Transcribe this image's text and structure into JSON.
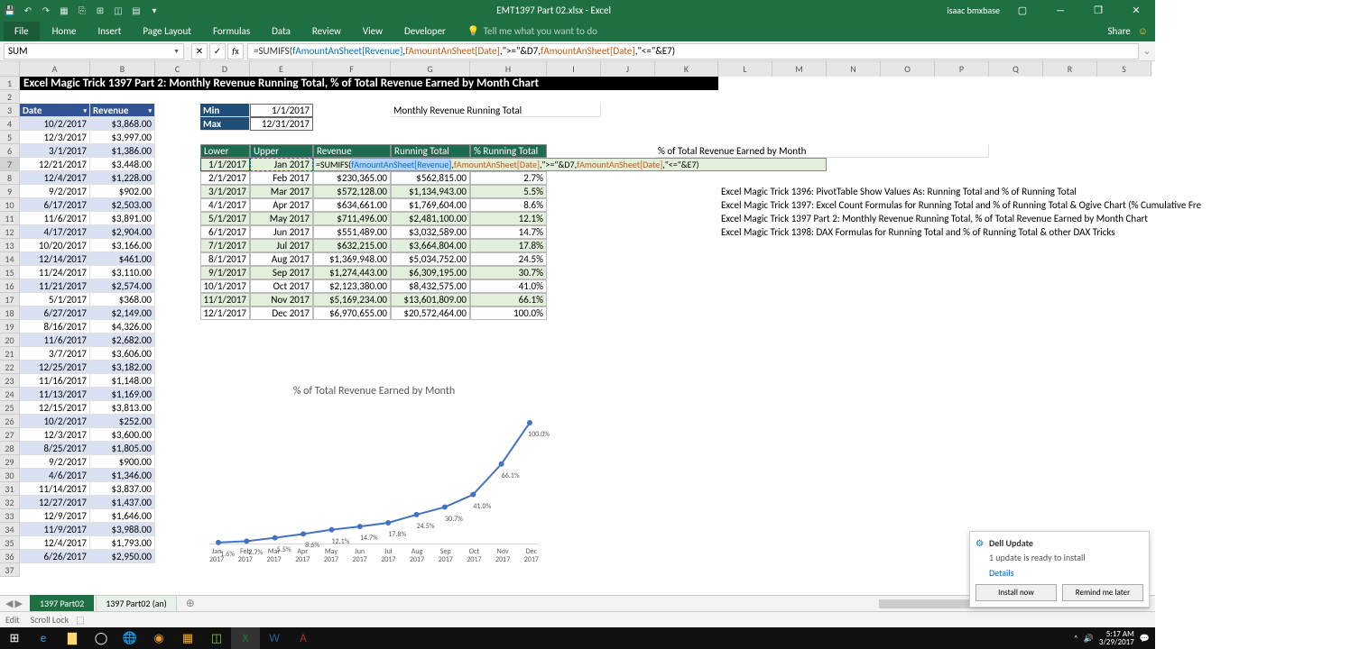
{
  "app": {
    "title": "EMT1397 Part 02.xlsx - Excel",
    "user": "isaac bmxbase"
  },
  "ribbon": {
    "file": "File",
    "tabs": [
      "Home",
      "Insert",
      "Page Layout",
      "Formulas",
      "Data",
      "Review",
      "View",
      "Developer"
    ],
    "tellme": "Tell me what you want to do",
    "share": "Share"
  },
  "namebox": "SUM",
  "formula": {
    "prefix": "=SUMIFS(",
    "arg1": "fAmountAnSheet[Revenue]",
    "sep1": ",",
    "arg2": "fAmountAnSheet[Date]",
    "sep2": ",\">=\"&D7,",
    "arg3": "fAmountAnSheet[Date]",
    "sep3": ",\"<=\"&E7)"
  },
  "columns": {
    "widths": [
      22,
      78,
      72,
      50,
      55,
      70,
      86,
      88,
      85,
      60,
      60,
      70,
      60,
      60,
      60,
      60,
      60,
      60,
      60,
      60
    ],
    "labels": [
      "",
      "A",
      "B",
      "C",
      "D",
      "E",
      "F",
      "G",
      "H",
      "I",
      "J",
      "K",
      "L",
      "M",
      "N",
      "O",
      "P",
      "Q",
      "R",
      "S"
    ]
  },
  "title_row": "Excel Magic Trick 1397 Part 2: Monthly Revenue Running Total, % of Total Revenue Earned by Month Chart",
  "table1": {
    "headers": [
      "Date",
      "Revenue"
    ],
    "rows": [
      [
        "10/2/2017",
        "$3,868.00"
      ],
      [
        "12/3/2017",
        "$3,997.00"
      ],
      [
        "3/1/2017",
        "$1,386.00"
      ],
      [
        "12/21/2017",
        "$3,448.00"
      ],
      [
        "12/4/2017",
        "$1,228.00"
      ],
      [
        "9/2/2017",
        "$902.00"
      ],
      [
        "6/17/2017",
        "$2,503.00"
      ],
      [
        "11/6/2017",
        "$3,891.00"
      ],
      [
        "4/17/2017",
        "$2,904.00"
      ],
      [
        "10/20/2017",
        "$3,166.00"
      ],
      [
        "12/14/2017",
        "$461.00"
      ],
      [
        "11/24/2017",
        "$3,110.00"
      ],
      [
        "11/21/2017",
        "$2,574.00"
      ],
      [
        "5/1/2017",
        "$368.00"
      ],
      [
        "6/27/2017",
        "$2,149.00"
      ],
      [
        "8/16/2017",
        "$4,326.00"
      ],
      [
        "11/6/2017",
        "$2,682.00"
      ],
      [
        "3/7/2017",
        "$3,606.00"
      ],
      [
        "12/25/2017",
        "$3,182.00"
      ],
      [
        "11/16/2017",
        "$1,148.00"
      ],
      [
        "11/13/2017",
        "$1,169.00"
      ],
      [
        "12/15/2017",
        "$3,813.00"
      ],
      [
        "10/2/2017",
        "$252.00"
      ],
      [
        "12/3/2017",
        "$3,600.00"
      ],
      [
        "8/25/2017",
        "$1,805.00"
      ],
      [
        "9/2/2017",
        "$900.00"
      ],
      [
        "4/6/2017",
        "$1,346.00"
      ],
      [
        "11/14/2017",
        "$3,837.00"
      ],
      [
        "12/27/2017",
        "$1,437.00"
      ],
      [
        "12/9/2017",
        "$1,646.00"
      ],
      [
        "11/9/2017",
        "$3,988.00"
      ],
      [
        "12/4/2017",
        "$1,793.00"
      ],
      [
        "6/26/2017",
        "$2,950.00"
      ]
    ]
  },
  "minmax": {
    "min_label": "Min",
    "min_val": "1/1/2017",
    "max_label": "Max",
    "max_val": "12/31/2017"
  },
  "running_title": "Monthly Revenue Running Total",
  "table2": {
    "headers": [
      "Lower",
      "Upper",
      "Revenue",
      "Running Total",
      "% Running Total"
    ],
    "rows": [
      [
        "1/1/2017",
        "Jan 2017",
        "=SUMIFS(",
        "",
        ""
      ],
      [
        "2/1/2017",
        "Feb 2017",
        "$230,365.00",
        "$562,815.00",
        "2.7%"
      ],
      [
        "3/1/2017",
        "Mar 2017",
        "$572,128.00",
        "$1,134,943.00",
        "5.5%"
      ],
      [
        "4/1/2017",
        "Apr 2017",
        "$634,661.00",
        "$1,769,604.00",
        "8.6%"
      ],
      [
        "5/1/2017",
        "May 2017",
        "$711,496.00",
        "$2,481,100.00",
        "12.1%"
      ],
      [
        "6/1/2017",
        "Jun 2017",
        "$551,489.00",
        "$3,032,589.00",
        "14.7%"
      ],
      [
        "7/1/2017",
        "Jul 2017",
        "$632,215.00",
        "$3,664,804.00",
        "17.8%"
      ],
      [
        "8/1/2017",
        "Aug 2017",
        "$1,369,948.00",
        "$5,034,752.00",
        "24.5%"
      ],
      [
        "9/1/2017",
        "Sep 2017",
        "$1,274,443.00",
        "$6,309,195.00",
        "30.7%"
      ],
      [
        "10/1/2017",
        "Oct 2017",
        "$2,123,380.00",
        "$8,432,575.00",
        "41.0%"
      ],
      [
        "11/1/2017",
        "Nov 2017",
        "$5,169,234.00",
        "$13,601,809.00",
        "66.1%"
      ],
      [
        "12/1/2017",
        "Dec 2017",
        "$6,970,655.00",
        "$20,572,464.00",
        "100.0%"
      ]
    ]
  },
  "chart": {
    "title": "% of Total Revenue Earned by Month",
    "series_color": "#4472c4",
    "points": [
      {
        "x": "Jan 2017",
        "y": 1.6,
        "label": "1.6%"
      },
      {
        "x": "Feb 2017",
        "y": 2.7,
        "label": "2.7%"
      },
      {
        "x": "Mar 2017",
        "y": 5.5,
        "label": "5.5%"
      },
      {
        "x": "Apr 2017",
        "y": 8.6,
        "label": "8.6%"
      },
      {
        "x": "May 2017",
        "y": 12.1,
        "label": "12.1%"
      },
      {
        "x": "Jun 2017",
        "y": 14.7,
        "label": "14.7%"
      },
      {
        "x": "Jul 2017",
        "y": 17.8,
        "label": "17.8%"
      },
      {
        "x": "Aug 2017",
        "y": 24.5,
        "label": "24.5%"
      },
      {
        "x": "Sep 2017",
        "y": 30.7,
        "label": "30.7%"
      },
      {
        "x": "Oct 2017",
        "y": 41.0,
        "label": "41.0%"
      },
      {
        "x": "Nov 2017",
        "y": 66.1,
        "label": "66.1%"
      },
      {
        "x": "Dec 2017",
        "y": 100.0,
        "label": "100.0%"
      }
    ],
    "ylim": [
      0,
      100
    ],
    "xlabels": [
      "Jan\n2017",
      "Feb\n2017",
      "Mar\n2017",
      "Apr\n2017",
      "May\n2017",
      "Jun\n2017",
      "Jul\n2017",
      "Aug\n2017",
      "Sep\n2017",
      "Oct\n2017",
      "Nov\n2017",
      "Dec\n2017"
    ]
  },
  "side_title": "% of Total Revenue Earned by Month",
  "side_notes": [
    "Excel Magic Trick 1396: PivotTable Show Values As: Running Total and % of Running Total",
    "Excel Magic Trick 1397: Excel Count Formulas for Running Total and % of Running Total & Ogive Chart (% Cumulative Fre",
    "Excel Magic Trick 1397 Part 2: Monthly Revenue Running Total, % of Total Revenue Earned by Month Chart",
    "Excel Magic Trick 1398: DAX Formulas for Running Total and % of Running Total & other DAX Tricks"
  ],
  "sheets": {
    "active": "1397 Part02",
    "other": "1397 Part02 (an)"
  },
  "statusbar": {
    "mode": "Edit",
    "scroll": "Scroll Lock"
  },
  "notification": {
    "title": "Dell Update",
    "body": "1 update is ready to install",
    "link": "Details",
    "btn1": "Install now",
    "btn2": "Remind me later"
  },
  "clock": {
    "time": "5:17 AM",
    "date": "3/29/2017"
  },
  "formula_overlay": {
    "p1": "=SUMIFS(",
    "a1": "fAmountAnSheet[Revenue]",
    "s1": ",",
    "a2": "fAmountAnSheet[Date]",
    "s2": ",\">=\"&D7,",
    "a3": "fAmountAnSheet[Date]",
    "s3": ",\"<=\"&E7)"
  }
}
